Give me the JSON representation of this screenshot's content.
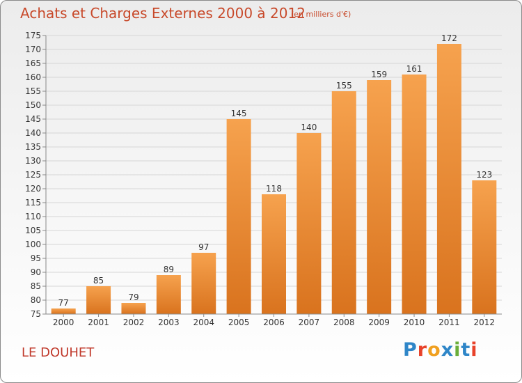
{
  "title": "Achats et Charges Externes 2000 à 2012",
  "subtitle": "(en milliers d'€)",
  "commune": "LE DOUHET",
  "logo": {
    "text": "Proxiti",
    "letters": [
      "P",
      "r",
      "o",
      "x",
      "i",
      "t",
      "i"
    ],
    "colors": [
      "#2f86c8",
      "#e8422a",
      "#f0a020",
      "#2f86c8",
      "#6aae3a",
      "#2f86c8",
      "#e8422a"
    ]
  },
  "chart_data": {
    "type": "bar",
    "categories": [
      "2000",
      "2001",
      "2002",
      "2003",
      "2004",
      "2005",
      "2006",
      "2007",
      "2008",
      "2009",
      "2010",
      "2011",
      "2012"
    ],
    "values": [
      77,
      85,
      79,
      89,
      97,
      145,
      118,
      140,
      155,
      159,
      161,
      172,
      123
    ],
    "ylim": [
      75,
      175
    ],
    "yticks": [
      75,
      80,
      85,
      90,
      95,
      100,
      105,
      110,
      115,
      120,
      125,
      130,
      135,
      140,
      145,
      150,
      155,
      160,
      165,
      170,
      175
    ],
    "grid": true,
    "bar_color_top": "#f6a24e",
    "bar_color_bottom": "#d9731e"
  }
}
